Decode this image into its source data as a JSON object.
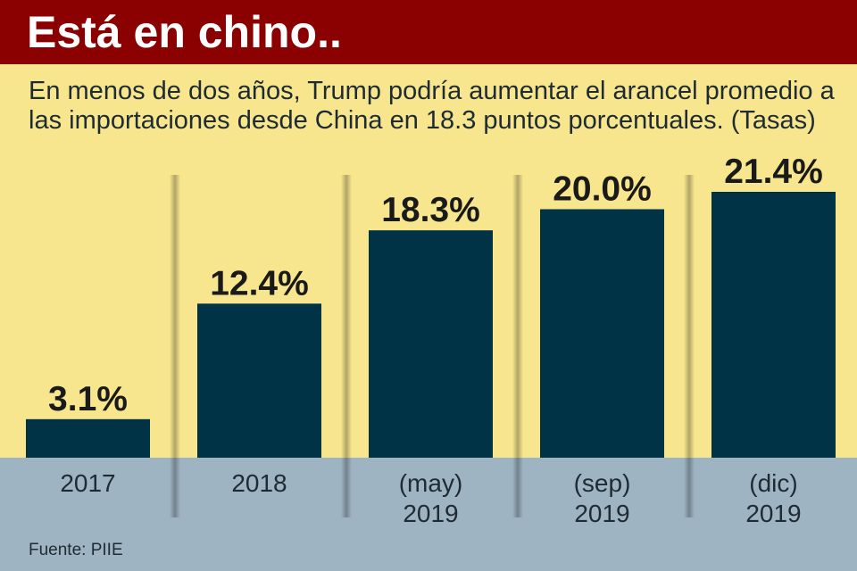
{
  "header": {
    "title": "Está en chino.."
  },
  "subtitle": "En menos de dos años, Trump podría aumentar el arancel promedio a las importaciones desde China en 18.3 puntos porcentuales. (Tasas)",
  "source": "Fuente: PIIE",
  "colors": {
    "header_bg": "#8b0000",
    "chart_bg": "#f7e68e",
    "bar": "#003346",
    "bottom_band": "#9fb4c2",
    "text": "#1e2b33"
  },
  "chart_data": {
    "type": "bar",
    "title": "Está en chino..",
    "subtitle": "En menos de dos años, Trump podría aumentar el arancel promedio a las importaciones desde China en 18.3 puntos porcentuales. (Tasas)",
    "categories": [
      [
        "2017"
      ],
      [
        "2018"
      ],
      [
        "(may)",
        "2019"
      ],
      [
        "(sep)",
        "2019"
      ],
      [
        "(dic)",
        "2019"
      ]
    ],
    "values": [
      3.1,
      12.4,
      18.3,
      20.0,
      21.4
    ],
    "value_labels": [
      "3.1%",
      "12.4%",
      "18.3%",
      "20.0%",
      "21.4%"
    ],
    "unit": "%",
    "xlabel": "",
    "ylabel": "",
    "ylim": [
      0,
      21.4
    ],
    "grid": false,
    "legend": "none"
  }
}
